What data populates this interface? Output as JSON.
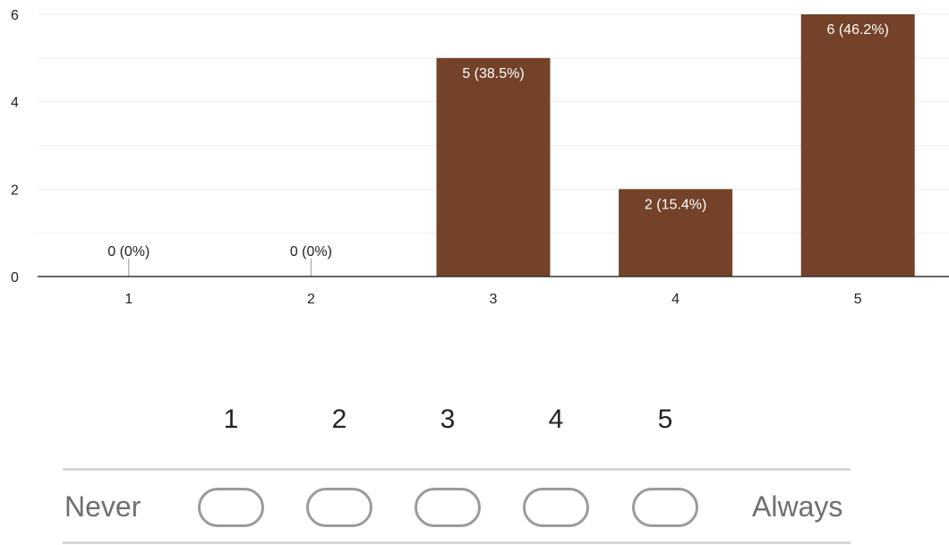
{
  "chart_data": {
    "type": "bar",
    "categories": [
      "1",
      "2",
      "3",
      "4",
      "5"
    ],
    "values": [
      0,
      0,
      5,
      2,
      6
    ],
    "data_labels": [
      "0 (0%)",
      "0 (0%)",
      "5 (38.5%)",
      "2 (15.4%)",
      "6 (46.2%)"
    ],
    "yticks": [
      "0",
      "2",
      "4",
      "6"
    ],
    "ylim": [
      0,
      6
    ],
    "title": "",
    "xlabel": "",
    "ylabel": "",
    "grid": true,
    "bar_color": "#744228",
    "grid_color": "#eeeeee"
  },
  "scale": {
    "numbers": [
      "1",
      "2",
      "3",
      "4",
      "5"
    ],
    "left_label": "Never",
    "right_label": "Always"
  }
}
